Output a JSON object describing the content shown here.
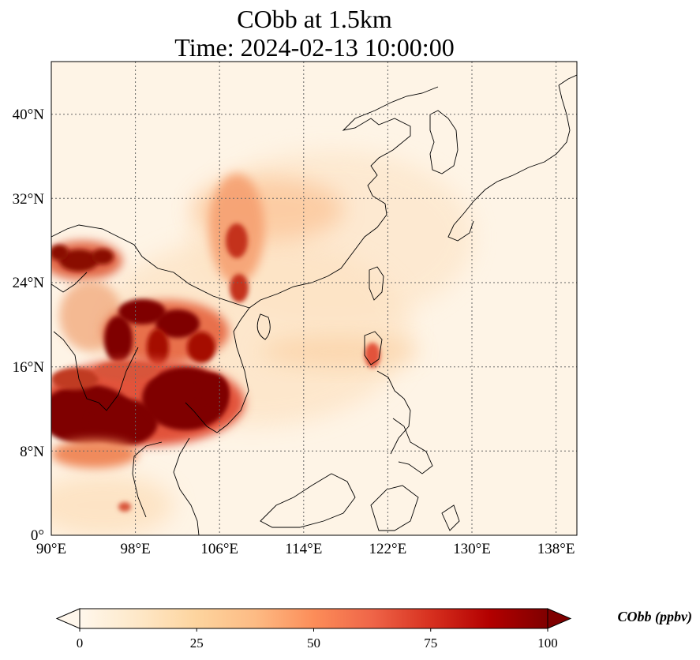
{
  "title": {
    "line1": "CObb at 1.5km",
    "line2": "Time: 2024-02-13 10:00:00"
  },
  "map": {
    "lon_range": [
      90,
      140
    ],
    "lat_range": [
      0,
      45
    ],
    "gridlines": true,
    "x_ticks": [
      "90°E",
      "98°E",
      "106°E",
      "114°E",
      "122°E",
      "130°E",
      "138°E"
    ],
    "y_ticks": [
      "0°",
      "8°N",
      "16°N",
      "24°N",
      "32°N",
      "40°N"
    ],
    "colormap": "OrRd",
    "coastlines": true,
    "country_borders": true
  },
  "colorbar": {
    "label": "CObb (ppbv)",
    "ticks": [
      "0",
      "25",
      "50",
      "75",
      "100"
    ],
    "min": 0,
    "max": 100,
    "extend": "both",
    "colors": [
      "#fff7ec",
      "#fee8c8",
      "#fdd49e",
      "#fdbb84",
      "#fc8d59",
      "#ef6548",
      "#d7301f",
      "#b30000",
      "#7f0000"
    ]
  }
}
